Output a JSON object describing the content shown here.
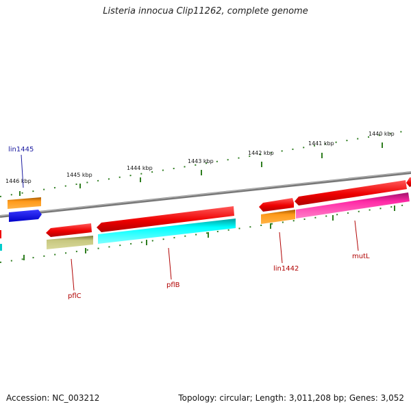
{
  "title": "Listeria innocua Clip11262, complete genome",
  "accession": "Accession: NC_003212",
  "summary": "Topology: circular; Length: 3,011,208 bp; Genes: 3,052",
  "colors": {
    "backbone": "#8a8a8a",
    "tick": "#2e7d1f",
    "label_red": "#b00000",
    "label_blue": "#1a1aa0"
  },
  "ticks": [
    {
      "name": "tick-1446-kbp",
      "label": "1446 kbp"
    },
    {
      "name": "tick-1445-kbp",
      "label": "1445 kbp"
    },
    {
      "name": "tick-1444-kbp",
      "label": "1444 kbp"
    },
    {
      "name": "tick-1443-kbp",
      "label": "1443 kbp"
    },
    {
      "name": "tick-1442-kbp",
      "label": "1442 kbp"
    },
    {
      "name": "tick-1441-kbp",
      "label": "1441 kbp"
    },
    {
      "name": "tick-1440-kbp",
      "label": "1440 kbp"
    }
  ],
  "gene_labels": {
    "lin1445": "lin1445",
    "pflC": "pflC",
    "pflB": "pflB",
    "lin1442": "lin1442",
    "mutL": "mutL"
  }
}
